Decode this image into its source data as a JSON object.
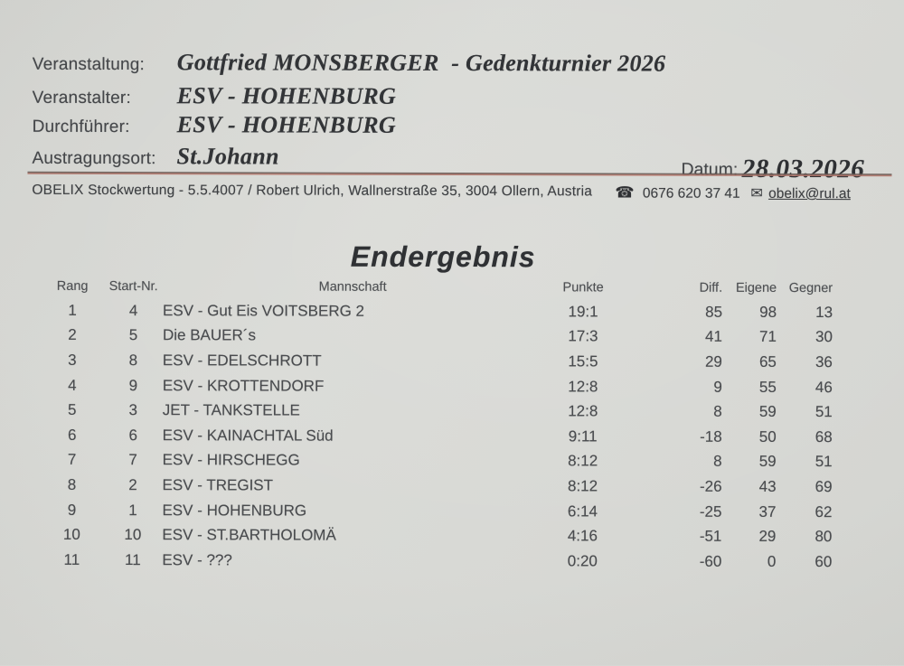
{
  "header": {
    "fields": [
      {
        "label": "Veranstaltung:",
        "value": "Gottfried MONSBERGER  - Gedenkturnier 2026"
      },
      {
        "label": "Veranstalter:",
        "value": "ESV - HOHENBURG"
      },
      {
        "label": "Durchführer:",
        "value": "ESV - HOHENBURG"
      },
      {
        "label": "Austragungsort:",
        "value": "St.Johann"
      }
    ],
    "date": {
      "label": "Datum:",
      "value": "28.03.2026"
    }
  },
  "infobar": {
    "software": "OBELIX Stockwertung - 5.5.4007 / Robert Ulrich, Wallnerstraße 35, 3004 Ollern, Austria",
    "phone_icon": "☎",
    "phone": "0676 620 37 41",
    "email_icon": "✉",
    "email": "obelix@rul.at"
  },
  "result": {
    "title": "Endergebnis",
    "table": {
      "headers": [
        "Rang",
        "Start-Nr.",
        "Mannschaft",
        "Punkte",
        "Diff.",
        "Eigene",
        "Gegner"
      ],
      "rows": [
        [
          "1",
          "4",
          "ESV - Gut Eis VOITSBERG 2",
          "19:1",
          "85",
          "98",
          "13"
        ],
        [
          "2",
          "5",
          "Die BAUER´s",
          "17:3",
          "41",
          "71",
          "30"
        ],
        [
          "3",
          "8",
          "ESV - EDELSCHROTT",
          "15:5",
          "29",
          "65",
          "36"
        ],
        [
          "4",
          "9",
          "ESV - KROTTENDORF",
          "12:8",
          "9",
          "55",
          "46"
        ],
        [
          "5",
          "3",
          "JET - TANKSTELLE",
          "12:8",
          "8",
          "59",
          "51"
        ],
        [
          "6",
          "6",
          "ESV - KAINACHTAL Süd",
          "9:11",
          "-18",
          "50",
          "68"
        ],
        [
          "7",
          "7",
          "ESV - HIRSCHEGG",
          "8:12",
          "8",
          "59",
          "51"
        ],
        [
          "8",
          "2",
          "ESV - TREGIST",
          "8:12",
          "-26",
          "43",
          "69"
        ],
        [
          "9",
          "1",
          "ESV - HOHENBURG",
          "6:14",
          "-25",
          "37",
          "62"
        ],
        [
          "10",
          "10",
          "ESV - ST.BARTHOLOMÄ",
          "4:16",
          "-51",
          "29",
          "80"
        ],
        [
          "11",
          "11",
          "ESV - ???",
          "0:20",
          "-60",
          "0",
          "60"
        ]
      ]
    }
  },
  "colors": {
    "paper": "#d6d7d3",
    "ink": "#45474a",
    "serif_ink": "#323437",
    "rule_dark": "#6a5b56",
    "rule_red": "#b2756a"
  }
}
